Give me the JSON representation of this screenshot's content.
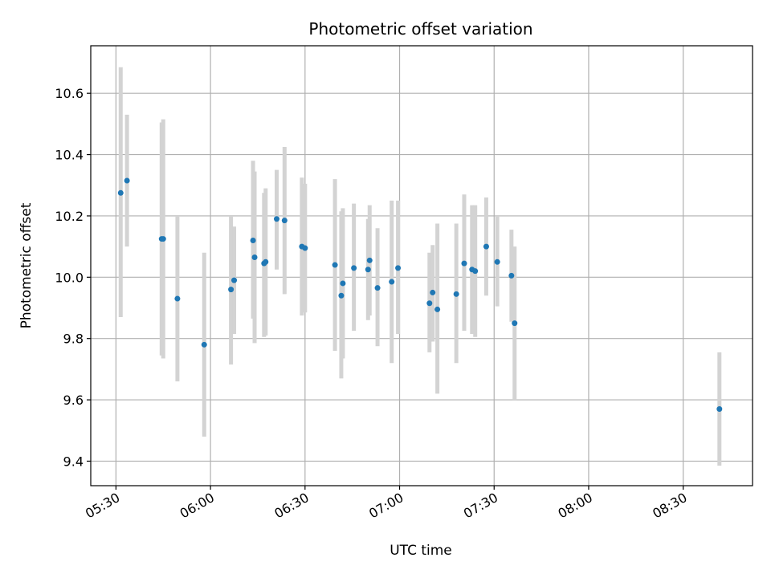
{
  "chart_data": {
    "type": "scatter",
    "title": "Photometric offset variation",
    "xlabel": "UTC time",
    "ylabel": "Photometric offset",
    "xlim": [
      "05:22",
      "08:52"
    ],
    "ylim": [
      9.32,
      10.755
    ],
    "x_ticks": [
      "05:30",
      "06:00",
      "06:30",
      "07:00",
      "07:30",
      "08:00",
      "08:30"
    ],
    "y_ticks": [
      "9.4",
      "9.6",
      "9.8",
      "10.0",
      "10.2",
      "10.4",
      "10.6"
    ],
    "grid": true,
    "colors": {
      "point": "#1f77b4",
      "errorbar": "#d3d3d3",
      "grid": "#b0b0b0",
      "frame": "#000000"
    },
    "points": [
      {
        "t": "05:31:30",
        "y": 10.275,
        "err_low": 9.87,
        "err_high": 10.685
      },
      {
        "t": "05:33:30",
        "y": 10.315,
        "err_low": 10.1,
        "err_high": 10.53
      },
      {
        "t": "05:44:30",
        "y": 10.125,
        "err_low": 9.745,
        "err_high": 10.505
      },
      {
        "t": "05:45:00",
        "y": 10.125,
        "err_low": 9.735,
        "err_high": 10.515
      },
      {
        "t": "05:49:30",
        "y": 9.93,
        "err_low": 9.66,
        "err_high": 10.2
      },
      {
        "t": "05:58:00",
        "y": 9.78,
        "err_low": 9.48,
        "err_high": 10.08
      },
      {
        "t": "06:06:30",
        "y": 9.96,
        "err_low": 9.715,
        "err_high": 10.2
      },
      {
        "t": "06:07:30",
        "y": 9.99,
        "err_low": 9.815,
        "err_high": 10.165
      },
      {
        "t": "06:13:30",
        "y": 10.12,
        "err_low": 9.865,
        "err_high": 10.38
      },
      {
        "t": "06:14:00",
        "y": 10.065,
        "err_low": 9.785,
        "err_high": 10.345
      },
      {
        "t": "06:17:00",
        "y": 10.045,
        "err_low": 9.805,
        "err_high": 10.275
      },
      {
        "t": "06:17:30",
        "y": 10.05,
        "err_low": 9.81,
        "err_high": 10.29
      },
      {
        "t": "06:21:00",
        "y": 10.19,
        "err_low": 10.025,
        "err_high": 10.35
      },
      {
        "t": "06:23:30",
        "y": 10.185,
        "err_low": 9.945,
        "err_high": 10.425
      },
      {
        "t": "06:29:00",
        "y": 10.1,
        "err_low": 9.875,
        "err_high": 10.325
      },
      {
        "t": "06:30:00",
        "y": 10.095,
        "err_low": 9.885,
        "err_high": 10.305
      },
      {
        "t": "06:39:30",
        "y": 10.04,
        "err_low": 9.76,
        "err_high": 10.32
      },
      {
        "t": "06:41:30",
        "y": 9.94,
        "err_low": 9.67,
        "err_high": 10.215
      },
      {
        "t": "06:42:00",
        "y": 9.98,
        "err_low": 9.735,
        "err_high": 10.225
      },
      {
        "t": "06:45:30",
        "y": 10.03,
        "err_low": 9.825,
        "err_high": 10.24
      },
      {
        "t": "06:50:00",
        "y": 10.025,
        "err_low": 9.86,
        "err_high": 10.19
      },
      {
        "t": "06:50:30",
        "y": 10.055,
        "err_low": 9.875,
        "err_high": 10.235
      },
      {
        "t": "06:53:00",
        "y": 9.965,
        "err_low": 9.775,
        "err_high": 10.16
      },
      {
        "t": "06:57:30",
        "y": 9.985,
        "err_low": 9.72,
        "err_high": 10.25
      },
      {
        "t": "06:59:30",
        "y": 10.03,
        "err_low": 9.815,
        "err_high": 10.25
      },
      {
        "t": "07:09:30",
        "y": 9.915,
        "err_low": 9.755,
        "err_high": 10.08
      },
      {
        "t": "07:10:30",
        "y": 9.95,
        "err_low": 9.79,
        "err_high": 10.105
      },
      {
        "t": "07:12:00",
        "y": 9.895,
        "err_low": 9.62,
        "err_high": 10.175
      },
      {
        "t": "07:18:00",
        "y": 9.945,
        "err_low": 9.72,
        "err_high": 10.175
      },
      {
        "t": "07:20:30",
        "y": 10.045,
        "err_low": 9.825,
        "err_high": 10.27
      },
      {
        "t": "07:23:00",
        "y": 10.025,
        "err_low": 9.815,
        "err_high": 10.235
      },
      {
        "t": "07:24:00",
        "y": 10.02,
        "err_low": 9.805,
        "err_high": 10.235
      },
      {
        "t": "07:27:30",
        "y": 10.1,
        "err_low": 9.94,
        "err_high": 10.26
      },
      {
        "t": "07:31:00",
        "y": 10.05,
        "err_low": 9.905,
        "err_high": 10.2
      },
      {
        "t": "07:35:30",
        "y": 10.005,
        "err_low": 9.855,
        "err_high": 10.155
      },
      {
        "t": "07:36:30",
        "y": 9.85,
        "err_low": 9.6,
        "err_high": 10.1
      },
      {
        "t": "08:41:30",
        "y": 9.57,
        "err_low": 9.385,
        "err_high": 9.755
      }
    ]
  }
}
